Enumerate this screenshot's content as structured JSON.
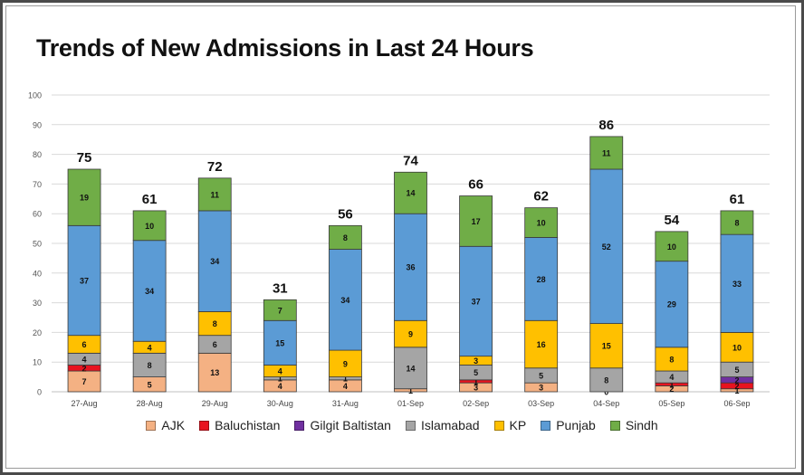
{
  "chart_data": {
    "type": "bar",
    "stacked": true,
    "title": "Trends of New Admissions in Last 24 Hours",
    "xlabel": "",
    "ylabel": "",
    "ylim": [
      0,
      100
    ],
    "yticks": [
      0,
      10,
      20,
      30,
      40,
      50,
      60,
      70,
      80,
      90,
      100
    ],
    "grid": true,
    "legend_position": "bottom",
    "categories": [
      "27-Aug",
      "28-Aug",
      "29-Aug",
      "30-Aug",
      "31-Aug",
      "01-Sep",
      "02-Sep",
      "03-Sep",
      "04-Sep",
      "05-Sep",
      "06-Sep"
    ],
    "totals": [
      75,
      61,
      72,
      31,
      56,
      74,
      66,
      62,
      86,
      54,
      61
    ],
    "series": [
      {
        "name": "AJK",
        "color": "#f4b183",
        "values": [
          7,
          5,
          13,
          4,
          4,
          1,
          3,
          3,
          0,
          2,
          1
        ]
      },
      {
        "name": "Baluchistan",
        "color": "#e8131f",
        "values": [
          2,
          0,
          0,
          0,
          0,
          0,
          1,
          0,
          0,
          1,
          2
        ]
      },
      {
        "name": "Gilgit Baltistan",
        "color": "#7030a0",
        "values": [
          0,
          0,
          0,
          0,
          0,
          0,
          0,
          0,
          0,
          0,
          2
        ]
      },
      {
        "name": "Islamabad",
        "color": "#a5a5a5",
        "values": [
          4,
          8,
          6,
          1,
          1,
          14,
          5,
          5,
          8,
          4,
          5
        ]
      },
      {
        "name": "KP",
        "color": "#ffc000",
        "values": [
          6,
          4,
          8,
          4,
          9,
          9,
          3,
          16,
          15,
          8,
          10
        ]
      },
      {
        "name": "Punjab",
        "color": "#5b9bd5",
        "values": [
          37,
          34,
          34,
          15,
          34,
          36,
          37,
          28,
          52,
          29,
          33
        ]
      },
      {
        "name": "Sindh",
        "color": "#70ad47",
        "values": [
          19,
          10,
          11,
          7,
          8,
          14,
          17,
          10,
          11,
          10,
          8
        ]
      }
    ],
    "segment_labels": [
      [
        "7",
        "2",
        "",
        "4",
        "6",
        "37",
        "19"
      ],
      [
        "5",
        "",
        "",
        "8",
        "4",
        "34",
        "10"
      ],
      [
        "13",
        "",
        "",
        "6",
        "8",
        "34",
        "11"
      ],
      [
        "4",
        "",
        "",
        "1",
        "4",
        "15",
        "7"
      ],
      [
        "4",
        "",
        "",
        "1",
        "9",
        "34",
        "8"
      ],
      [
        "1",
        "",
        "",
        "14",
        "9",
        "36",
        "14"
      ],
      [
        "3",
        "1",
        "",
        "5",
        "3",
        "37",
        "17"
      ],
      [
        "3",
        "",
        "",
        "5",
        "16",
        "28",
        "10"
      ],
      [
        "0",
        "",
        "",
        "8",
        "15",
        "52",
        "11"
      ],
      [
        "2",
        "1",
        "",
        "4",
        "8",
        "29",
        "10"
      ],
      [
        "1",
        "2",
        "2",
        "5",
        "10",
        "33",
        "8"
      ]
    ]
  }
}
